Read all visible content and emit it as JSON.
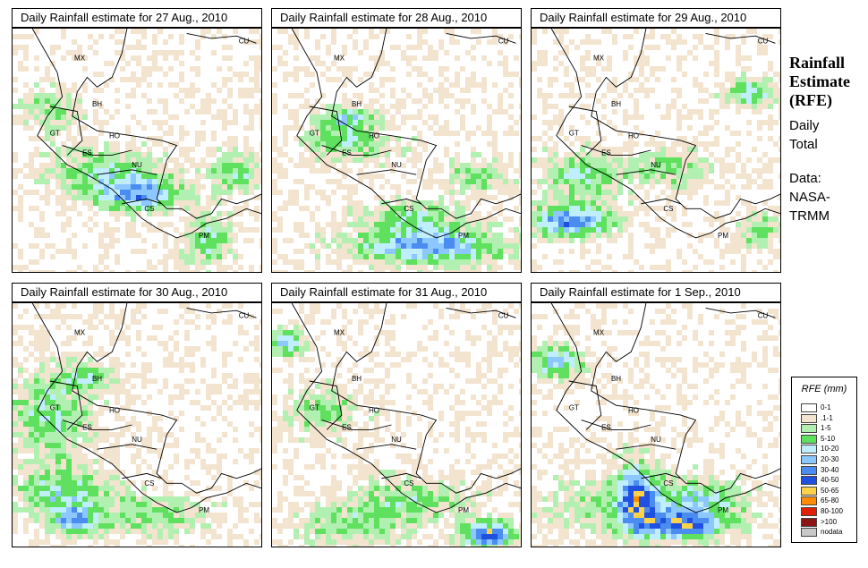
{
  "panels": [
    {
      "title": "Daily Rainfall estimate for  27 Aug., 2010",
      "seed": 27,
      "blobs": [
        [
          0.5,
          0.67,
          0.17,
          0.07,
          5.0
        ],
        [
          0.88,
          0.58,
          0.1,
          0.08,
          3.2
        ],
        [
          0.35,
          0.58,
          0.22,
          0.1,
          2.6
        ],
        [
          0.15,
          0.33,
          0.12,
          0.08,
          2.2
        ],
        [
          0.78,
          0.86,
          0.1,
          0.1,
          3.0
        ]
      ]
    },
    {
      "title": "Daily Rainfall estimate for  28 Aug., 2010",
      "seed": 28,
      "blobs": [
        [
          0.62,
          0.88,
          0.28,
          0.07,
          5.6
        ],
        [
          0.3,
          0.46,
          0.18,
          0.08,
          2.8
        ],
        [
          0.3,
          0.36,
          0.1,
          0.04,
          3.6
        ],
        [
          0.82,
          0.6,
          0.12,
          0.07,
          2.6
        ],
        [
          0.55,
          0.76,
          0.2,
          0.06,
          2.8
        ]
      ]
    },
    {
      "title": "Daily Rainfall estimate for  29 Aug., 2010",
      "seed": 29,
      "blobs": [
        [
          0.15,
          0.78,
          0.15,
          0.06,
          6.2
        ],
        [
          0.87,
          0.26,
          0.1,
          0.05,
          4.2
        ],
        [
          0.2,
          0.6,
          0.16,
          0.1,
          3.0
        ],
        [
          0.55,
          0.56,
          0.16,
          0.08,
          2.4
        ],
        [
          0.9,
          0.82,
          0.08,
          0.08,
          2.6
        ]
      ]
    },
    {
      "title": "Daily Rainfall estimate for  30 Aug., 2010",
      "seed": 30,
      "blobs": [
        [
          0.15,
          0.45,
          0.16,
          0.18,
          3.0
        ],
        [
          0.2,
          0.77,
          0.18,
          0.1,
          3.6
        ],
        [
          0.25,
          0.88,
          0.08,
          0.05,
          4.6
        ],
        [
          0.55,
          0.86,
          0.22,
          0.08,
          2.6
        ],
        [
          0.3,
          0.3,
          0.1,
          0.05,
          3.0
        ]
      ]
    },
    {
      "title": "Daily Rainfall estimate for  31 Aug., 2010",
      "seed": 31,
      "blobs": [
        [
          0.86,
          0.94,
          0.1,
          0.05,
          7.2
        ],
        [
          0.06,
          0.16,
          0.06,
          0.05,
          4.6
        ],
        [
          0.55,
          0.8,
          0.24,
          0.09,
          2.6
        ],
        [
          0.2,
          0.44,
          0.16,
          0.1,
          2.4
        ],
        [
          0.3,
          0.9,
          0.2,
          0.08,
          2.4
        ]
      ]
    },
    {
      "title": "Daily Rainfall estimate for  1 Sep., 2010",
      "seed": 32,
      "blobs": [
        [
          0.42,
          0.78,
          0.07,
          0.13,
          5.0
        ],
        [
          0.6,
          0.9,
          0.16,
          0.05,
          5.6
        ],
        [
          0.1,
          0.24,
          0.1,
          0.06,
          4.6
        ],
        [
          0.45,
          0.83,
          0.32,
          0.13,
          3.0
        ],
        [
          0.7,
          0.8,
          0.14,
          0.06,
          2.6
        ]
      ]
    }
  ],
  "countries": [
    "MX",
    "CU",
    "BH",
    "GT",
    "HO",
    "ES",
    "NU",
    "CS",
    "PM"
  ],
  "side": {
    "title_lines": [
      "Rainfall",
      "Estimate",
      "(RFE)"
    ],
    "daily_lines": [
      "Daily",
      "Total"
    ],
    "data_lines": [
      "Data:",
      "NASA-",
      "TRMM"
    ]
  },
  "legend": {
    "title": "RFE (mm)",
    "items": [
      {
        "label": "0-1",
        "color": "#ffffff"
      },
      {
        "label": ".1-1",
        "color": "#f2e4cf"
      },
      {
        "label": "1-5",
        "color": "#b2f0b2"
      },
      {
        "label": "5-10",
        "color": "#5fe05f"
      },
      {
        "label": "10-20",
        "color": "#bfeeff"
      },
      {
        "label": "20-30",
        "color": "#8cc8ff"
      },
      {
        "label": "30-40",
        "color": "#4a8cf0"
      },
      {
        "label": "40-50",
        "color": "#2050e0"
      },
      {
        "label": "50-65",
        "color": "#ffd24a"
      },
      {
        "label": "65-80",
        "color": "#ff8c00"
      },
      {
        "label": "80-100",
        "color": "#e02000"
      },
      {
        "label": ">100",
        "color": "#8c1414"
      },
      {
        "label": "nodata",
        "color": "#c8c8c8"
      }
    ]
  }
}
